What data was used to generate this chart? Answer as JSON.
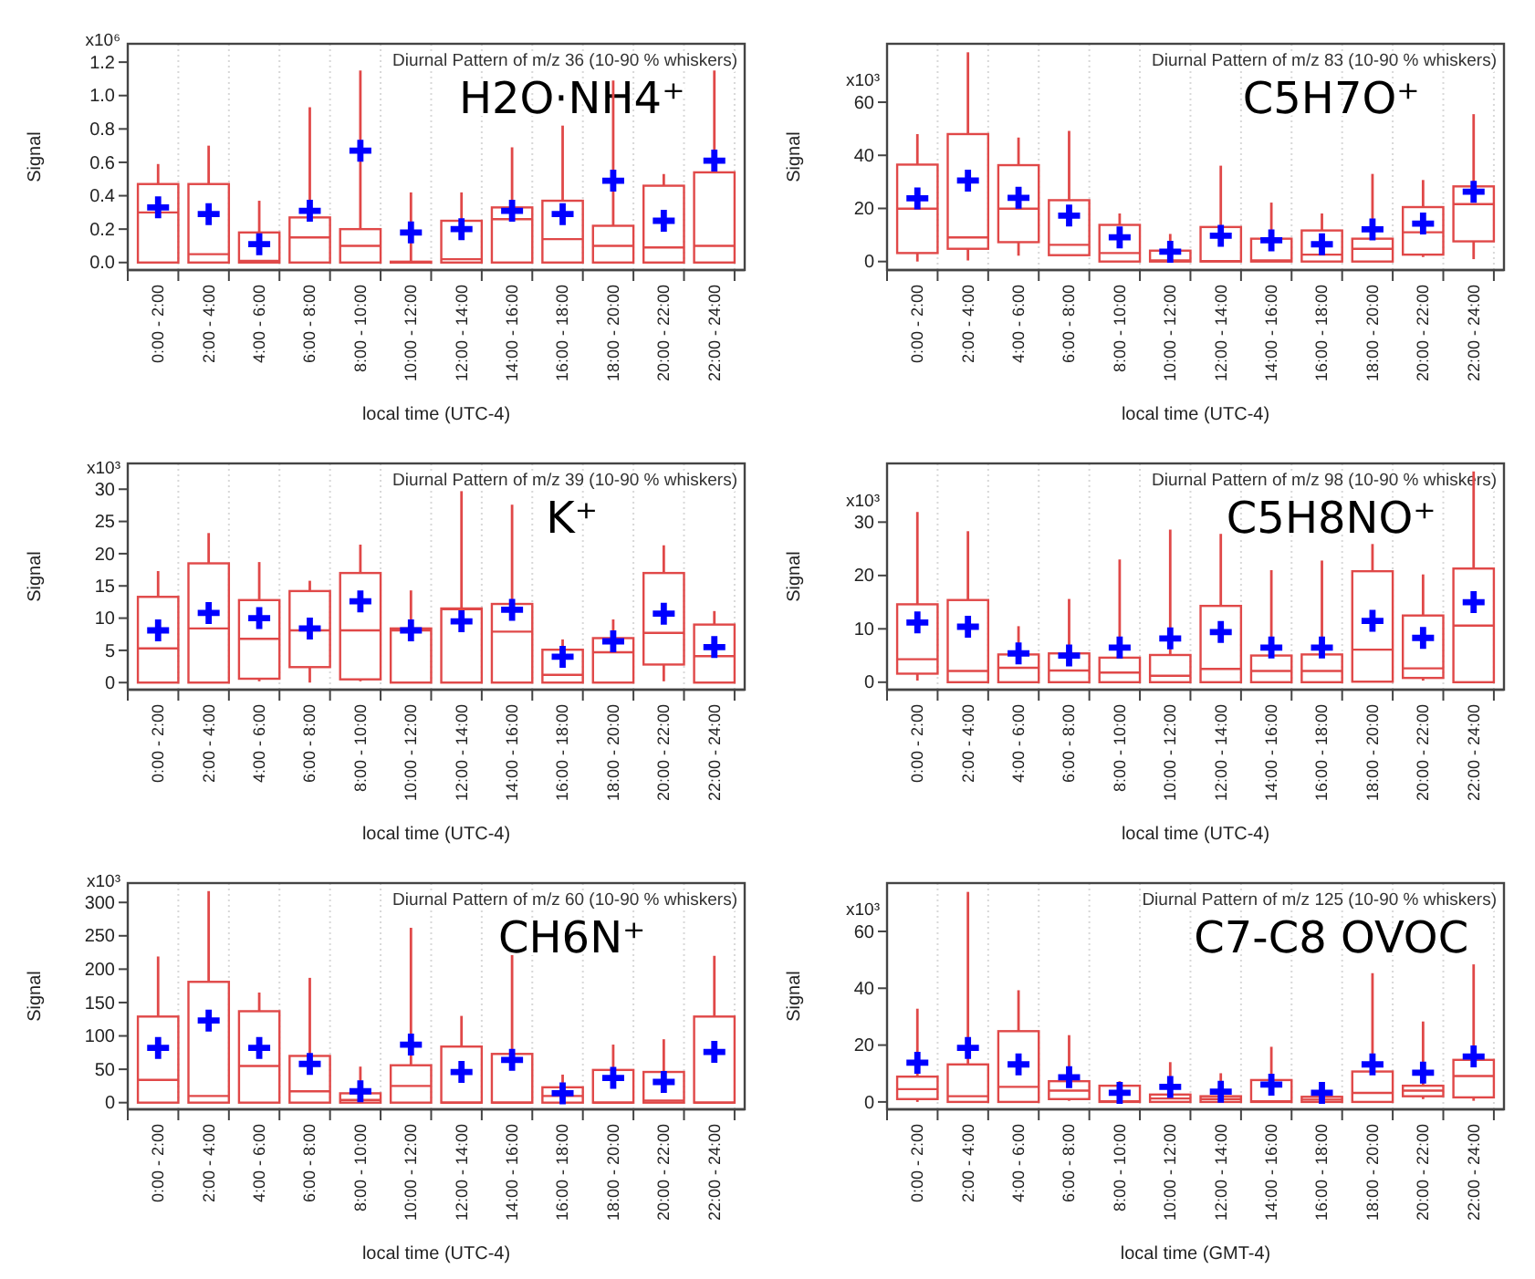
{
  "chart_data": [
    {
      "type": "box",
      "title": "Diurnal Pattern of m/z 36 (10-90 % whiskers)",
      "annotations": [
        "H2O·NH4⁺",
        "x10⁶"
      ],
      "xlabel": "local time (UTC-4)",
      "ylabel": "Signal",
      "grid": "x",
      "marker": "cross",
      "categories": [
        "0:00 - 2:00",
        "2:00 - 4:00",
        "4:00 - 6:00",
        "6:00 - 8:00",
        "8:00 - 10:00",
        "10:00 - 12:00",
        "12:00 - 14:00",
        "14:00 - 16:00",
        "16:00 - 18:00",
        "18:00 - 20:00",
        "20:00 - 22:00",
        "22:00 - 24:00"
      ],
      "ylim": [
        -0.045,
        1.31
      ],
      "yticks": [
        {
          "value": 0,
          "label": "0.0"
        },
        {
          "value": 0.2,
          "label": "0.2"
        },
        {
          "value": 0.4,
          "label": "0.4"
        },
        {
          "value": 0.6,
          "label": "0.6"
        },
        {
          "value": 0.8,
          "label": "0.8"
        },
        {
          "value": 1.0,
          "label": "1.0"
        },
        {
          "value": 1.2,
          "label": "1.2"
        }
      ],
      "series": [
        {
          "color": "#e04848",
          "boxes": [
            {
              "low": 0,
              "q1": 0,
              "median": 0.3,
              "q3": 0.47,
              "high": 0.59
            },
            {
              "low": 0,
              "q1": 0,
              "median": 0.05,
              "q3": 0.47,
              "high": 0.7
            },
            {
              "low": 0,
              "q1": 0,
              "median": 0.01,
              "q3": 0.18,
              "high": 0.37
            },
            {
              "low": 0,
              "q1": 0,
              "median": 0.15,
              "q3": 0.27,
              "high": 0.93
            },
            {
              "low": 0,
              "q1": 0,
              "median": 0.1,
              "q3": 0.2,
              "high": 1.15
            },
            {
              "low": 0,
              "q1": 0,
              "median": 0,
              "q3": 0.005,
              "high": 0.42
            },
            {
              "low": 0,
              "q1": 0,
              "median": 0.02,
              "q3": 0.25,
              "high": 0.42
            },
            {
              "low": 0,
              "q1": 0,
              "median": 0.26,
              "q3": 0.33,
              "high": 0.69
            },
            {
              "low": 0,
              "q1": 0,
              "median": 0.14,
              "q3": 0.37,
              "high": 0.82
            },
            {
              "low": 0,
              "q1": 0,
              "median": 0.1,
              "q3": 0.22,
              "high": 1.09
            },
            {
              "low": 0,
              "q1": 0,
              "median": 0.09,
              "q3": 0.46,
              "high": 0.53
            },
            {
              "low": 0,
              "q1": 0,
              "median": 0.1,
              "q3": 0.54,
              "high": 1.15
            }
          ]
        },
        {
          "type": "scatter",
          "color": "#0000ff",
          "x": [
            "0:00 - 2:00",
            "2:00 - 4:00",
            "4:00 - 6:00",
            "6:00 - 8:00",
            "8:00 - 10:00",
            "10:00 - 12:00",
            "12:00 - 14:00",
            "14:00 - 16:00",
            "16:00 - 18:00",
            "18:00 - 20:00",
            "20:00 - 22:00",
            "22:00 - 24:00"
          ],
          "values": [
            0.33,
            0.29,
            0.11,
            0.31,
            0.67,
            0.18,
            0.2,
            0.31,
            0.29,
            0.49,
            0.25,
            0.61
          ]
        }
      ]
    },
    {
      "type": "box",
      "title": "Diurnal Pattern of m/z 83 (10-90 % whiskers)",
      "annotations": [
        "C5H7O⁺",
        "x10³"
      ],
      "xlabel": "local time (UTC-4)",
      "ylabel": "Signal",
      "grid": "x",
      "marker": "cross",
      "categories": [
        "0:00 - 2:00",
        "2:00 - 4:00",
        "4:00 - 6:00",
        "6:00 - 8:00",
        "8:00 - 10:00",
        "10:00 - 12:00",
        "12:00 - 14:00",
        "14:00 - 16:00",
        "16:00 - 18:00",
        "18:00 - 20:00",
        "20:00 - 22:00",
        "22:00 - 24:00"
      ],
      "ylim": [
        -3.2,
        82
      ],
      "yticks": [
        0,
        20,
        40,
        60
      ],
      "series": [
        {
          "color": "#e04848",
          "boxes": [
            {
              "low": 0,
              "q1": 3.2,
              "median": 19.9,
              "q3": 36.5,
              "high": 48
            },
            {
              "low": 0.4,
              "q1": 4.8,
              "median": 9.1,
              "q3": 48,
              "high": 78.8
            },
            {
              "low": 2.2,
              "q1": 7.3,
              "median": 19.9,
              "q3": 36.3,
              "high": 46.7
            },
            {
              "low": 2.4,
              "q1": 2.4,
              "median": 6.3,
              "q3": 23.1,
              "high": 49.2
            },
            {
              "low": 0,
              "q1": 0,
              "median": 3.2,
              "q3": 13.8,
              "high": 18.1
            },
            {
              "low": 0,
              "q1": 0,
              "median": 0.4,
              "q3": 4.1,
              "high": 10.4
            },
            {
              "low": 0,
              "q1": 0,
              "median": 0.2,
              "q3": 13,
              "high": 36.1
            },
            {
              "low": 0,
              "q1": 0,
              "median": 0.4,
              "q3": 8.6,
              "high": 22.2
            },
            {
              "low": 0,
              "q1": 0,
              "median": 2.6,
              "q3": 11.7,
              "high": 18.1
            },
            {
              "low": 0,
              "q1": 0,
              "median": 4.8,
              "q3": 8.6,
              "high": 33
            },
            {
              "low": 1.7,
              "q1": 2.6,
              "median": 11,
              "q3": 20.5,
              "high": 30.7
            },
            {
              "low": 0.9,
              "q1": 7.6,
              "median": 21.6,
              "q3": 28.3,
              "high": 55.5
            }
          ]
        },
        {
          "type": "scatter",
          "color": "#0000ff",
          "x": [
            "0:00 - 2:00",
            "2:00 - 4:00",
            "4:00 - 6:00",
            "6:00 - 8:00",
            "8:00 - 10:00",
            "10:00 - 12:00",
            "12:00 - 14:00",
            "14:00 - 16:00",
            "16:00 - 18:00",
            "18:00 - 20:00",
            "20:00 - 22:00",
            "22:00 - 24:00"
          ],
          "values": [
            23.8,
            30.5,
            24,
            17.3,
            9.1,
            3.7,
            9.7,
            8,
            6.5,
            12.1,
            14.3,
            26.3
          ]
        }
      ]
    },
    {
      "type": "box",
      "title": "Diurnal Pattern of m/z 39 (10-90 % whiskers)",
      "annotations": [
        "K⁺",
        "x10³"
      ],
      "xlabel": "local time (UTC-4)",
      "ylabel": "Signal",
      "grid": "x",
      "marker": "cross",
      "categories": [
        "0:00 - 2:00",
        "2:00 - 4:00",
        "4:00 - 6:00",
        "6:00 - 8:00",
        "8:00 - 10:00",
        "10:00 - 12:00",
        "12:00 - 14:00",
        "14:00 - 16:00",
        "16:00 - 18:00",
        "18:00 - 20:00",
        "20:00 - 22:00",
        "22:00 - 24:00"
      ],
      "ylim": [
        -1.1,
        34
      ],
      "yticks": [
        0,
        5,
        10,
        15,
        20,
        25,
        30
      ],
      "series": [
        {
          "color": "#e04848",
          "boxes": [
            {
              "low": 0,
              "q1": 0,
              "median": 5.3,
              "q3": 13.3,
              "high": 17.3
            },
            {
              "low": 0,
              "q1": 0,
              "median": 8.4,
              "q3": 18.5,
              "high": 23.2
            },
            {
              "low": 0.2,
              "q1": 0.6,
              "median": 6.8,
              "q3": 12.8,
              "high": 18.7
            },
            {
              "low": 0,
              "q1": 2.4,
              "median": 8.1,
              "q3": 14.2,
              "high": 15.8
            },
            {
              "low": 0.2,
              "q1": 0.5,
              "median": 8.1,
              "q3": 17,
              "high": 21.4
            },
            {
              "low": 0,
              "q1": 0,
              "median": 8.1,
              "q3": 8.4,
              "high": 14.3
            },
            {
              "low": 0,
              "q1": 0,
              "median": 11.4,
              "q3": 11.5,
              "high": 29.7
            },
            {
              "low": 0,
              "q1": 0,
              "median": 7.9,
              "q3": 12.2,
              "high": 27.6
            },
            {
              "low": 0,
              "q1": 0,
              "median": 1.2,
              "q3": 5.1,
              "high": 6.7
            },
            {
              "low": 0,
              "q1": 0,
              "median": 4.7,
              "q3": 6.9,
              "high": 9.8
            },
            {
              "low": 0.2,
              "q1": 2.8,
              "median": 7.7,
              "q3": 17,
              "high": 21.3
            },
            {
              "low": 0,
              "q1": 0,
              "median": 4.1,
              "q3": 9,
              "high": 11.1
            }
          ]
        },
        {
          "type": "scatter",
          "color": "#0000ff",
          "x": [
            "0:00 - 2:00",
            "2:00 - 4:00",
            "4:00 - 6:00",
            "6:00 - 8:00",
            "8:00 - 10:00",
            "10:00 - 12:00",
            "12:00 - 14:00",
            "14:00 - 16:00",
            "16:00 - 18:00",
            "18:00 - 20:00",
            "20:00 - 22:00",
            "22:00 - 24:00"
          ],
          "values": [
            8.1,
            10.8,
            10,
            8.4,
            12.6,
            8.1,
            9.5,
            11.3,
            4,
            6.4,
            10.7,
            5.5
          ]
        }
      ]
    },
    {
      "type": "box",
      "title": "Diurnal Pattern of m/z 98 (10-90 % whiskers)",
      "annotations": [
        "C5H8NO⁺",
        "x10³"
      ],
      "xlabel": "local time (UTC-4)",
      "ylabel": "Signal",
      "grid": "x",
      "marker": "cross",
      "categories": [
        "0:00 - 2:00",
        "2:00 - 4:00",
        "4:00 - 6:00",
        "6:00 - 8:00",
        "8:00 - 10:00",
        "10:00 - 12:00",
        "12:00 - 14:00",
        "14:00 - 16:00",
        "16:00 - 18:00",
        "18:00 - 20:00",
        "20:00 - 22:00",
        "22:00 - 24:00"
      ],
      "ylim": [
        -1.4,
        41
      ],
      "yticks": [
        0,
        10,
        20,
        30
      ],
      "series": [
        {
          "color": "#e04848",
          "boxes": [
            {
              "low": 0.3,
              "q1": 1.6,
              "median": 4.3,
              "q3": 14.6,
              "high": 31.9
            },
            {
              "low": 0,
              "q1": 0,
              "median": 2.1,
              "q3": 15.4,
              "high": 28.3
            },
            {
              "low": 0,
              "q1": 0,
              "median": 2.7,
              "q3": 5.2,
              "high": 10.5
            },
            {
              "low": 0,
              "q1": 0,
              "median": 2.2,
              "q3": 5.4,
              "high": 15.6
            },
            {
              "low": 0,
              "q1": 0,
              "median": 1.8,
              "q3": 4.6,
              "high": 23
            },
            {
              "low": 0,
              "q1": 0,
              "median": 1.2,
              "q3": 5.1,
              "high": 28.6
            },
            {
              "low": 0,
              "q1": 0,
              "median": 2.5,
              "q3": 14.3,
              "high": 27.8
            },
            {
              "low": 0,
              "q1": 0,
              "median": 2.1,
              "q3": 5,
              "high": 21
            },
            {
              "low": 0,
              "q1": 0,
              "median": 2.1,
              "q3": 5.2,
              "high": 22.8
            },
            {
              "low": 0,
              "q1": 0.1,
              "median": 6.1,
              "q3": 20.8,
              "high": 25.9
            },
            {
              "low": 0.3,
              "q1": 0.8,
              "median": 2.6,
              "q3": 12.5,
              "high": 20.2
            },
            {
              "low": 0,
              "q1": 0,
              "median": 10.6,
              "q3": 21.3,
              "high": 39.5
            }
          ]
        },
        {
          "type": "scatter",
          "color": "#0000ff",
          "x": [
            "0:00 - 2:00",
            "2:00 - 4:00",
            "4:00 - 6:00",
            "6:00 - 8:00",
            "8:00 - 10:00",
            "10:00 - 12:00",
            "12:00 - 14:00",
            "14:00 - 16:00",
            "16:00 - 18:00",
            "18:00 - 20:00",
            "20:00 - 22:00",
            "22:00 - 24:00"
          ],
          "values": [
            11.2,
            10.4,
            5.4,
            5,
            6.5,
            8.2,
            9.4,
            6.5,
            6.5,
            11.5,
            8.3,
            15
          ]
        }
      ]
    },
    {
      "type": "box",
      "title": "Diurnal Pattern of m/z 60 (10-90 % whiskers)",
      "annotations": [
        "CH6N⁺",
        "x10³"
      ],
      "xlabel": "local time (UTC-4)",
      "ylabel": "Signal",
      "grid": "x",
      "marker": "cross",
      "categories": [
        "0:00 - 2:00",
        "2:00 - 4:00",
        "4:00 - 6:00",
        "6:00 - 8:00",
        "8:00 - 10:00",
        "10:00 - 12:00",
        "12:00 - 14:00",
        "14:00 - 16:00",
        "16:00 - 18:00",
        "18:00 - 20:00",
        "20:00 - 22:00",
        "22:00 - 24:00"
      ],
      "ylim": [
        -10,
        329
      ],
      "yticks": [
        0,
        50,
        100,
        150,
        200,
        250,
        300
      ],
      "series": [
        {
          "color": "#e04848",
          "boxes": [
            {
              "low": 0,
              "q1": 0,
              "median": 34,
              "q3": 129,
              "high": 219
            },
            {
              "low": 0,
              "q1": 0,
              "median": 10,
              "q3": 181,
              "high": 317
            },
            {
              "low": 0,
              "q1": 0,
              "median": 55,
              "q3": 137,
              "high": 165
            },
            {
              "low": 0,
              "q1": 0,
              "median": 17,
              "q3": 70,
              "high": 187
            },
            {
              "low": 0,
              "q1": 0,
              "median": 4,
              "q3": 14,
              "high": 54
            },
            {
              "low": 0,
              "q1": 0,
              "median": 25,
              "q3": 56,
              "high": 262
            },
            {
              "low": 0,
              "q1": 0,
              "median": 0,
              "q3": 84,
              "high": 130
            },
            {
              "low": 0,
              "q1": 0,
              "median": 0,
              "q3": 73,
              "high": 221
            },
            {
              "low": 0,
              "q1": 0,
              "median": 10,
              "q3": 23,
              "high": 42
            },
            {
              "low": 0,
              "q1": 0,
              "median": 0,
              "q3": 49,
              "high": 87
            },
            {
              "low": 0,
              "q1": 0,
              "median": 3,
              "q3": 46,
              "high": 95
            },
            {
              "low": 0,
              "q1": 0,
              "median": 0,
              "q3": 129,
              "high": 220
            }
          ]
        },
        {
          "type": "scatter",
          "color": "#0000ff",
          "x": [
            "0:00 - 2:00",
            "2:00 - 4:00",
            "4:00 - 6:00",
            "6:00 - 8:00",
            "8:00 - 10:00",
            "10:00 - 12:00",
            "12:00 - 14:00",
            "14:00 - 16:00",
            "16:00 - 18:00",
            "18:00 - 20:00",
            "20:00 - 22:00",
            "22:00 - 24:00"
          ],
          "values": [
            82,
            123,
            82,
            58,
            17,
            87,
            46,
            64,
            14,
            37,
            31,
            76
          ]
        }
      ]
    },
    {
      "type": "box",
      "title": "Diurnal Pattern of m/z 125 (10-90 % whiskers)",
      "annotations": [
        "C7-C8 OVOC",
        "x10³"
      ],
      "xlabel": "local time (GMT-4)",
      "ylabel": "Signal",
      "grid": "x",
      "marker": "cross",
      "categories": [
        "0:00 - 2:00",
        "2:00 - 4:00",
        "4:00 - 6:00",
        "6:00 - 8:00",
        "8:00 - 10:00",
        "10:00 - 12:00",
        "12:00 - 14:00",
        "14:00 - 16:00",
        "16:00 - 18:00",
        "18:00 - 20:00",
        "20:00 - 22:00",
        "22:00 - 24:00"
      ],
      "ylim": [
        -2.6,
        77
      ],
      "yticks": [
        0,
        20,
        40,
        60
      ],
      "series": [
        {
          "color": "#e04848",
          "boxes": [
            {
              "low": 0,
              "q1": 1,
              "median": 4.5,
              "q3": 8.9,
              "high": 32.8
            },
            {
              "low": 0,
              "q1": 0,
              "median": 2,
              "q3": 13.2,
              "high": 73.9
            },
            {
              "low": 0,
              "q1": 0,
              "median": 5.3,
              "q3": 24.9,
              "high": 39.3
            },
            {
              "low": 0.4,
              "q1": 1,
              "median": 4,
              "q3": 7.3,
              "high": 23.5
            },
            {
              "low": 0,
              "q1": 0,
              "median": 0.2,
              "q3": 5.7,
              "high": 7.3
            },
            {
              "low": 0,
              "q1": 0,
              "median": 1.2,
              "q3": 2.6,
              "high": 14
            },
            {
              "low": 0,
              "q1": 0,
              "median": 1,
              "q3": 2,
              "high": 10.1
            },
            {
              "low": 0,
              "q1": 0,
              "median": 0.2,
              "q3": 7.7,
              "high": 19.4
            },
            {
              "low": 0,
              "q1": 0,
              "median": 0.8,
              "q3": 1.8,
              "high": 4.7
            },
            {
              "low": 0,
              "q1": 0,
              "median": 3.2,
              "q3": 10.7,
              "high": 45.3
            },
            {
              "low": 1,
              "q1": 2,
              "median": 4,
              "q3": 5.7,
              "high": 28.3
            },
            {
              "low": 0.4,
              "q1": 1.6,
              "median": 9.1,
              "q3": 14.8,
              "high": 48.4
            }
          ]
        },
        {
          "type": "scatter",
          "color": "#0000ff",
          "x": [
            "0:00 - 2:00",
            "2:00 - 4:00",
            "4:00 - 6:00",
            "6:00 - 8:00",
            "8:00 - 10:00",
            "10:00 - 12:00",
            "12:00 - 14:00",
            "14:00 - 16:00",
            "16:00 - 18:00",
            "18:00 - 20:00",
            "20:00 - 22:00",
            "22:00 - 24:00"
          ],
          "values": [
            13.8,
            19,
            13.2,
            8.7,
            3.2,
            5.3,
            3.6,
            6.1,
            3.2,
            13.2,
            10.3,
            16
          ]
        }
      ]
    }
  ]
}
